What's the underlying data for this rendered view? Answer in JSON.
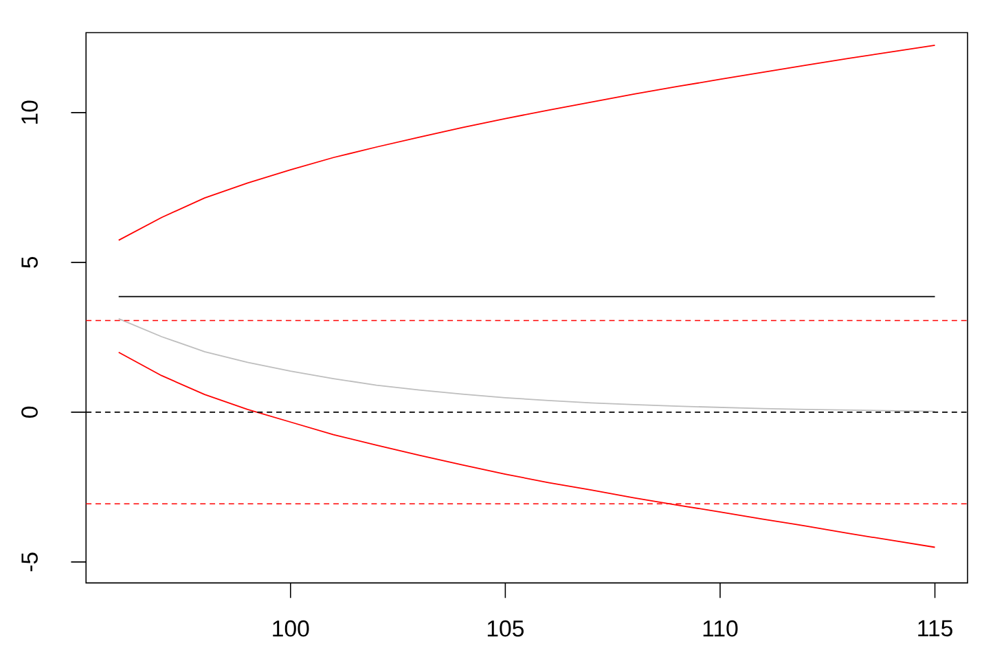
{
  "chart_data": {
    "type": "line",
    "line_style": "solid",
    "x": [
      96,
      97,
      98,
      99,
      100,
      101,
      102,
      103,
      104,
      105,
      106,
      107,
      108,
      109,
      110,
      111,
      112,
      113,
      114,
      115
    ],
    "xlim": [
      95.24,
      115.76
    ],
    "ylim": [
      -5.7,
      12.67
    ],
    "xticks": [
      100,
      105,
      110,
      115
    ],
    "yticks": [
      -5,
      0,
      5,
      10
    ],
    "series": [
      {
        "color": "#ff0000",
        "values": [
          5.74,
          6.5,
          7.15,
          7.65,
          8.09,
          8.5,
          8.85,
          9.18,
          9.5,
          9.8,
          10.08,
          10.35,
          10.62,
          10.87,
          11.11,
          11.35,
          11.58,
          11.81,
          12.03,
          12.25
        ]
      },
      {
        "color": "#ff0000",
        "values": [
          2.0,
          1.22,
          0.59,
          0.09,
          -0.33,
          -0.75,
          -1.1,
          -1.44,
          -1.76,
          -2.07,
          -2.35,
          -2.6,
          -2.86,
          -3.1,
          -3.33,
          -3.57,
          -3.8,
          -4.05,
          -4.28,
          -4.51
        ]
      },
      {
        "color": "#bebebe",
        "values": [
          3.12,
          2.52,
          2.02,
          1.66,
          1.37,
          1.12,
          0.9,
          0.74,
          0.6,
          0.48,
          0.39,
          0.31,
          0.25,
          0.2,
          0.16,
          0.12,
          0.09,
          0.07,
          0.05,
          0.03
        ]
      },
      {
        "color": "#000000",
        "x": [
          96,
          115
        ],
        "values": [
          3.86,
          3.86
        ]
      }
    ],
    "ref_lines": [
      {
        "axis": "y",
        "value": 0,
        "color": "#000000",
        "line_style": "dashed"
      },
      {
        "axis": "y",
        "value": 3.06,
        "color": "#ff0000",
        "line_style": "dashed"
      },
      {
        "axis": "y",
        "value": -3.06,
        "color": "#ff0000",
        "line_style": "dashed"
      }
    ]
  }
}
